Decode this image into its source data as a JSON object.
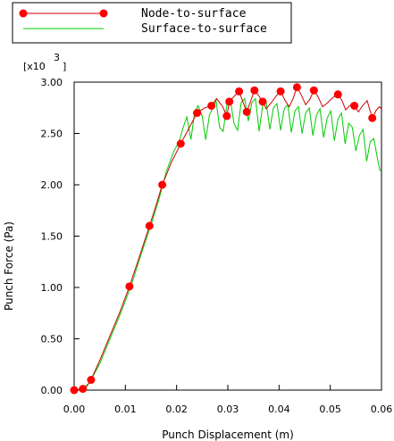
{
  "chart_data": {
    "type": "line",
    "xlabel": "Punch Displacement (m)",
    "ylabel": "Punch Force (Pa)",
    "y_multiplier_base": "[x10",
    "y_multiplier_exp": "3",
    "xlim": [
      0.0,
      0.06
    ],
    "ylim": [
      0.0,
      3.0
    ],
    "x_ticks": [
      "0.00",
      "0.01",
      "0.02",
      "0.03",
      "0.04",
      "0.05",
      "0.06"
    ],
    "y_ticks": [
      "0.00",
      "0.50",
      "1.00",
      "1.50",
      "2.00",
      "2.50",
      "3.00"
    ],
    "legend_position": "top-left",
    "grid": false,
    "series": [
      {
        "name": "Node-to-surface",
        "color": "#cc0000",
        "marker": "circle",
        "marker_color": "#ff0000",
        "markers": [
          [
            0.0,
            0.0
          ],
          [
            0.0017,
            0.012
          ],
          [
            0.0033,
            0.1
          ],
          [
            0.0108,
            1.01
          ],
          [
            0.0147,
            1.6
          ],
          [
            0.0172,
            2.0
          ],
          [
            0.0208,
            2.4
          ],
          [
            0.024,
            2.7
          ],
          [
            0.0268,
            2.77
          ],
          [
            0.0298,
            2.67
          ],
          [
            0.0303,
            2.81
          ],
          [
            0.0322,
            2.91
          ],
          [
            0.0337,
            2.71
          ],
          [
            0.0352,
            2.92
          ],
          [
            0.0368,
            2.81
          ],
          [
            0.0403,
            2.91
          ],
          [
            0.0435,
            2.95
          ],
          [
            0.0468,
            2.92
          ],
          [
            0.0515,
            2.88
          ],
          [
            0.0547,
            2.77
          ],
          [
            0.0582,
            2.65
          ]
        ],
        "points": [
          [
            0.0,
            0.0
          ],
          [
            0.001,
            0.005
          ],
          [
            0.0017,
            0.012
          ],
          [
            0.0025,
            0.04
          ],
          [
            0.0033,
            0.1
          ],
          [
            0.005,
            0.29
          ],
          [
            0.007,
            0.53
          ],
          [
            0.009,
            0.77
          ],
          [
            0.0108,
            1.01
          ],
          [
            0.0128,
            1.31
          ],
          [
            0.0147,
            1.6
          ],
          [
            0.016,
            1.8
          ],
          [
            0.0172,
            2.0
          ],
          [
            0.019,
            2.22
          ],
          [
            0.0208,
            2.4
          ],
          [
            0.0225,
            2.56
          ],
          [
            0.024,
            2.7
          ],
          [
            0.0255,
            2.75
          ],
          [
            0.0268,
            2.77
          ],
          [
            0.0278,
            2.84
          ],
          [
            0.029,
            2.76
          ],
          [
            0.0298,
            2.67
          ],
          [
            0.0303,
            2.81
          ],
          [
            0.0312,
            2.86
          ],
          [
            0.0322,
            2.91
          ],
          [
            0.033,
            2.8
          ],
          [
            0.0337,
            2.71
          ],
          [
            0.0345,
            2.82
          ],
          [
            0.0352,
            2.92
          ],
          [
            0.036,
            2.87
          ],
          [
            0.0368,
            2.81
          ],
          [
            0.0375,
            2.74
          ],
          [
            0.0385,
            2.8
          ],
          [
            0.0395,
            2.87
          ],
          [
            0.0403,
            2.91
          ],
          [
            0.0412,
            2.82
          ],
          [
            0.042,
            2.76
          ],
          [
            0.0428,
            2.85
          ],
          [
            0.0435,
            2.95
          ],
          [
            0.0443,
            2.88
          ],
          [
            0.0452,
            2.78
          ],
          [
            0.046,
            2.83
          ],
          [
            0.0468,
            2.92
          ],
          [
            0.0476,
            2.86
          ],
          [
            0.0485,
            2.76
          ],
          [
            0.0495,
            2.8
          ],
          [
            0.0505,
            2.85
          ],
          [
            0.0515,
            2.88
          ],
          [
            0.0523,
            2.82
          ],
          [
            0.053,
            2.73
          ],
          [
            0.054,
            2.78
          ],
          [
            0.0547,
            2.77
          ],
          [
            0.0555,
            2.71
          ],
          [
            0.0563,
            2.77
          ],
          [
            0.0572,
            2.82
          ],
          [
            0.0582,
            2.65
          ],
          [
            0.059,
            2.73
          ],
          [
            0.0596,
            2.76
          ],
          [
            0.06,
            2.74
          ]
        ]
      },
      {
        "name": "Surface-to-surface",
        "color": "#00cc00",
        "marker": "none",
        "points": [
          [
            0.0,
            0.0
          ],
          [
            0.0015,
            0.01
          ],
          [
            0.003,
            0.07
          ],
          [
            0.005,
            0.26
          ],
          [
            0.007,
            0.5
          ],
          [
            0.009,
            0.74
          ],
          [
            0.011,
            1.0
          ],
          [
            0.013,
            1.31
          ],
          [
            0.015,
            1.61
          ],
          [
            0.0165,
            1.85
          ],
          [
            0.018,
            2.13
          ],
          [
            0.0195,
            2.33
          ],
          [
            0.0205,
            2.42
          ],
          [
            0.0213,
            2.56
          ],
          [
            0.022,
            2.66
          ],
          [
            0.0228,
            2.44
          ],
          [
            0.0235,
            2.7
          ],
          [
            0.0242,
            2.77
          ],
          [
            0.025,
            2.67
          ],
          [
            0.0257,
            2.44
          ],
          [
            0.0264,
            2.68
          ],
          [
            0.027,
            2.74
          ],
          [
            0.0277,
            2.82
          ],
          [
            0.0284,
            2.56
          ],
          [
            0.0291,
            2.52
          ],
          [
            0.0298,
            2.78
          ],
          [
            0.0305,
            2.82
          ],
          [
            0.0312,
            2.6
          ],
          [
            0.0319,
            2.53
          ],
          [
            0.0326,
            2.8
          ],
          [
            0.0333,
            2.84
          ],
          [
            0.034,
            2.62
          ],
          [
            0.0347,
            2.8
          ],
          [
            0.0354,
            2.84
          ],
          [
            0.0361,
            2.52
          ],
          [
            0.0368,
            2.77
          ],
          [
            0.0375,
            2.8
          ],
          [
            0.0382,
            2.54
          ],
          [
            0.0389,
            2.75
          ],
          [
            0.0396,
            2.79
          ],
          [
            0.0403,
            2.53
          ],
          [
            0.041,
            2.74
          ],
          [
            0.0417,
            2.78
          ],
          [
            0.0424,
            2.51
          ],
          [
            0.0431,
            2.72
          ],
          [
            0.0438,
            2.76
          ],
          [
            0.0445,
            2.5
          ],
          [
            0.0452,
            2.7
          ],
          [
            0.0459,
            2.75
          ],
          [
            0.0466,
            2.48
          ],
          [
            0.0473,
            2.68
          ],
          [
            0.048,
            2.74
          ],
          [
            0.0487,
            2.46
          ],
          [
            0.0494,
            2.65
          ],
          [
            0.0501,
            2.72
          ],
          [
            0.0508,
            2.43
          ],
          [
            0.0515,
            2.64
          ],
          [
            0.0522,
            2.7
          ],
          [
            0.0529,
            2.4
          ],
          [
            0.0536,
            2.6
          ],
          [
            0.0543,
            2.56
          ],
          [
            0.055,
            2.33
          ],
          [
            0.0557,
            2.48
          ],
          [
            0.0564,
            2.54
          ],
          [
            0.0571,
            2.23
          ],
          [
            0.0578,
            2.42
          ],
          [
            0.0585,
            2.45
          ],
          [
            0.0592,
            2.26
          ],
          [
            0.0597,
            2.14
          ],
          [
            0.06,
            2.15
          ]
        ]
      }
    ]
  }
}
